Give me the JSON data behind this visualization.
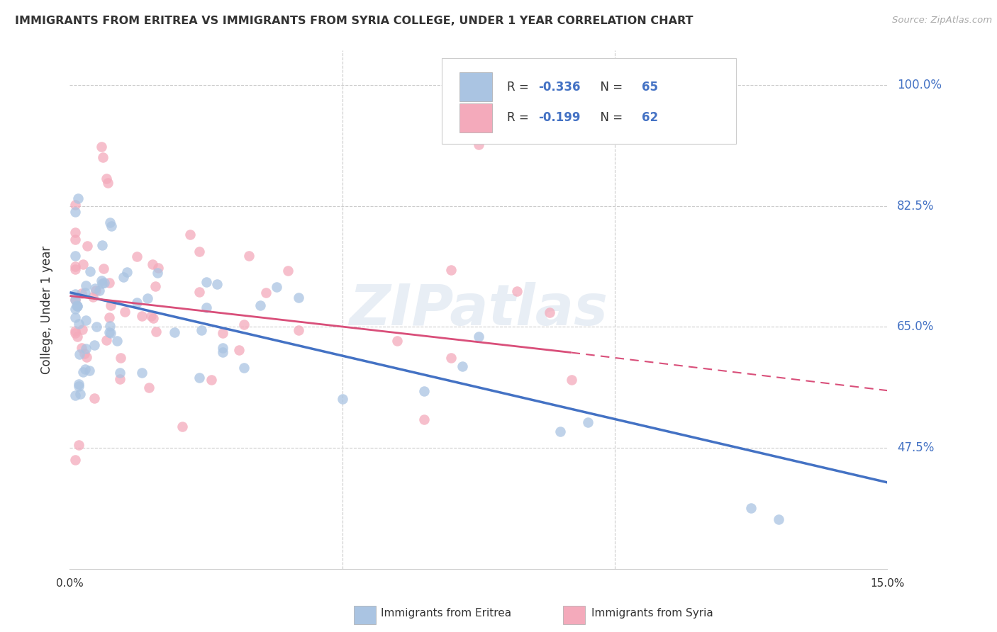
{
  "title": "IMMIGRANTS FROM ERITREA VS IMMIGRANTS FROM SYRIA COLLEGE, UNDER 1 YEAR CORRELATION CHART",
  "source": "Source: ZipAtlas.com",
  "ylabel": "College, Under 1 year",
  "xmin": 0.0,
  "xmax": 0.15,
  "ymin": 0.3,
  "ymax": 1.05,
  "ytick_vals": [
    1.0,
    0.825,
    0.65,
    0.475
  ],
  "ytick_labels": [
    "100.0%",
    "82.5%",
    "65.0%",
    "47.5%"
  ],
  "legend_r_eritrea": "-0.336",
  "legend_n_eritrea": "65",
  "legend_r_syria": "-0.199",
  "legend_n_syria": "62",
  "color_eritrea_fill": "#aac4e2",
  "color_eritrea_line": "#4472c4",
  "color_syria_fill": "#f4aabb",
  "color_syria_line": "#d94f7a",
  "grid_color": "#cccccc",
  "text_color": "#333333",
  "axis_label_color": "#4472c4",
  "watermark": "ZIPatlas",
  "watermark_color": "#e8eef5",
  "background_color": "#ffffff",
  "bottom_legend_eritrea": "Immigrants from Eritrea",
  "bottom_legend_syria": "Immigrants from Syria",
  "eri_line_x0": 0.0,
  "eri_line_y0": 0.7,
  "eri_line_x1": 0.15,
  "eri_line_y1": 0.425,
  "syr_line_x0": 0.0,
  "syr_line_y0": 0.695,
  "syr_line_x1_solid": 0.092,
  "syr_line_y1_solid": 0.613,
  "syr_line_x1_dash": 0.15,
  "syr_line_y1_dash": 0.558
}
